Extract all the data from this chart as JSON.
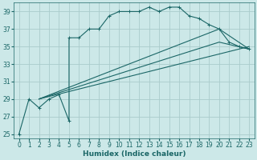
{
  "xlabel": "Humidex (Indice chaleur)",
  "background_color": "#cce8e8",
  "grid_color": "#aacccc",
  "line_color": "#1a6666",
  "xlim": [
    -0.5,
    23.5
  ],
  "ylim": [
    24.5,
    40.0
  ],
  "yticks": [
    25,
    27,
    29,
    31,
    33,
    35,
    37,
    39
  ],
  "xticks": [
    0,
    1,
    2,
    3,
    4,
    5,
    6,
    7,
    8,
    9,
    10,
    11,
    12,
    13,
    14,
    15,
    16,
    17,
    18,
    19,
    20,
    21,
    22,
    23
  ],
  "series1_x": [
    0,
    1,
    2,
    3,
    4,
    5,
    5,
    6,
    7,
    8,
    9,
    10,
    11,
    12,
    13,
    14,
    15,
    16,
    17,
    18,
    19,
    20,
    21,
    22,
    23
  ],
  "series1_y": [
    25,
    29,
    28,
    29,
    29.5,
    26.5,
    36,
    36,
    37,
    37,
    38.5,
    39,
    39,
    39,
    39.5,
    39,
    39.5,
    39.5,
    38.5,
    38.2,
    37.5,
    37,
    35.5,
    35,
    34.7
  ],
  "series2_x": [
    2,
    23
  ],
  "series2_y": [
    29,
    35
  ],
  "series3_x": [
    2,
    20,
    23
  ],
  "series3_y": [
    29,
    35.5,
    34.7
  ],
  "series4_x": [
    2,
    20,
    23
  ],
  "series4_y": [
    29,
    37,
    34.7
  ]
}
